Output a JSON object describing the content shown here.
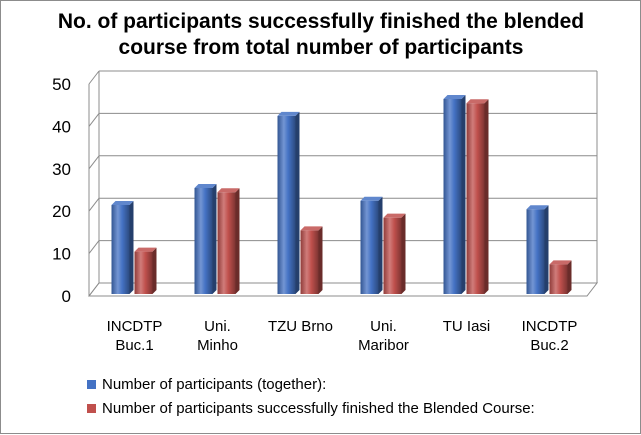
{
  "chart_data": {
    "type": "bar",
    "title_line1": "No. of participants successfully finished the blended",
    "title_line2": "course from total number of participants",
    "categories": [
      [
        "INCDTP",
        "Buc.1"
      ],
      [
        "Uni.",
        "Minho"
      ],
      [
        "TZU Brno"
      ],
      [
        "Uni.",
        "Maribor"
      ],
      [
        "TU Iasi"
      ],
      [
        "INCDTP",
        "Buc.2"
      ]
    ],
    "series": [
      {
        "name": "Number of participants (together):",
        "values": [
          21,
          25,
          42,
          22,
          46,
          20
        ],
        "color": "#4472c4"
      },
      {
        "name": "Number of participants successfully finished the Blended Course:",
        "values": [
          10,
          24,
          15,
          18,
          45,
          7
        ],
        "color": "#c0504d"
      }
    ],
    "yticks": [
      0,
      10,
      20,
      30,
      40,
      50
    ],
    "ylim": [
      0,
      50
    ],
    "grid": true,
    "legend_position": "bottom-left"
  }
}
